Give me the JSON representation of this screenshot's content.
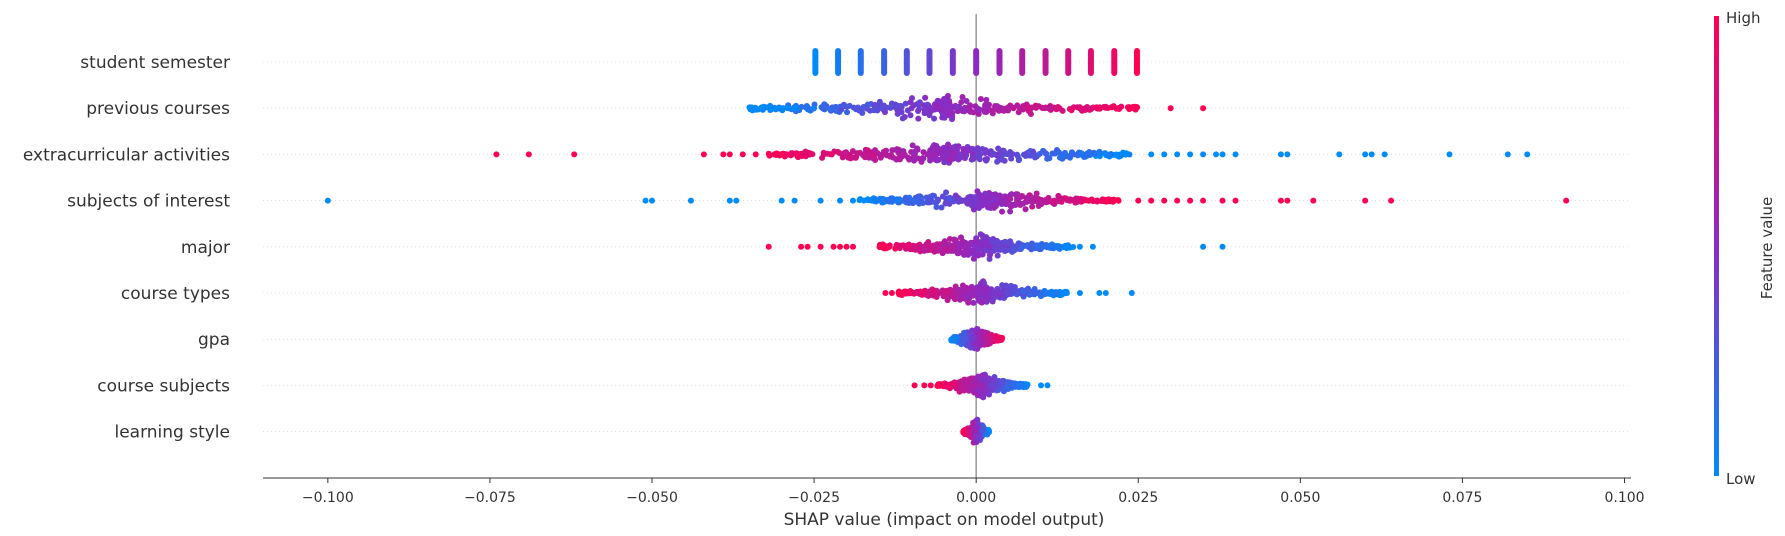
{
  "chart_data": {
    "type": "scatter",
    "subtype": "shap-beeswarm",
    "title": "",
    "xlabel": "SHAP value (impact on model output)",
    "ylabel": "",
    "xlim": [
      -0.11,
      0.101
    ],
    "xticks": [
      -0.1,
      -0.075,
      -0.05,
      -0.025,
      0.0,
      0.025,
      0.05,
      0.075,
      0.1
    ],
    "xtick_labels": [
      "−0.100",
      "−0.075",
      "−0.050",
      "−0.025",
      "0.000",
      "0.025",
      "0.050",
      "0.075",
      "0.100"
    ],
    "grid": false,
    "zero_line": true,
    "colorbar": {
      "label": "Feature value",
      "high_label": "High",
      "low_label": "Low",
      "low_color": "#008bfb",
      "mid_color": "#8b2bc3",
      "high_color": "#ff0052",
      "placement": "right"
    },
    "features": [
      {
        "name": "student semester",
        "kind": "discrete",
        "x_values": [
          -0.0248,
          -0.0213,
          -0.0178,
          -0.0142,
          -0.0107,
          -0.0072,
          -0.0036,
          0.0,
          0.0036,
          0.0071,
          0.0107,
          0.0142,
          0.0177,
          0.0213,
          0.0248
        ],
        "feature_value_rank": [
          0.0,
          0.07,
          0.14,
          0.21,
          0.29,
          0.36,
          0.43,
          0.5,
          0.57,
          0.64,
          0.71,
          0.79,
          0.86,
          0.93,
          1.0
        ]
      },
      {
        "name": "previous courses",
        "kind": "continuous",
        "range": [
          -0.035,
          0.025
        ],
        "trend": "increasing",
        "spread": 0.009,
        "outliers": [
          [
            -0.034,
            0.0
          ],
          [
            -0.033,
            0.0
          ],
          [
            -0.031,
            0.0
          ],
          [
            -0.03,
            0.0
          ],
          [
            -0.029,
            0.0
          ],
          [
            -0.028,
            0.0
          ],
          [
            -0.025,
            0.05
          ],
          [
            0.03,
            1.0
          ],
          [
            0.035,
            1.0
          ]
        ]
      },
      {
        "name": "extracurricular activities",
        "kind": "continuous",
        "range": [
          -0.032,
          0.024
        ],
        "trend": "decreasing",
        "spread": 0.011,
        "outliers": [
          [
            -0.074,
            1.0
          ],
          [
            -0.069,
            1.0
          ],
          [
            -0.062,
            1.0
          ],
          [
            -0.042,
            1.0
          ],
          [
            -0.039,
            1.0
          ],
          [
            -0.038,
            1.0
          ],
          [
            -0.036,
            1.0
          ],
          [
            -0.034,
            1.0
          ],
          [
            0.027,
            0.0
          ],
          [
            0.029,
            0.0
          ],
          [
            0.031,
            0.0
          ],
          [
            0.033,
            0.0
          ],
          [
            0.035,
            0.0
          ],
          [
            0.037,
            0.0
          ],
          [
            0.038,
            0.0
          ],
          [
            0.04,
            0.0
          ],
          [
            0.047,
            0.0
          ],
          [
            0.048,
            0.0
          ],
          [
            0.056,
            0.0
          ],
          [
            0.06,
            0.0
          ],
          [
            0.061,
            0.0
          ],
          [
            0.063,
            0.0
          ],
          [
            0.073,
            0.0
          ],
          [
            0.082,
            0.0
          ],
          [
            0.085,
            0.0
          ]
        ]
      },
      {
        "name": "subjects of interest",
        "kind": "continuous",
        "range": [
          -0.018,
          0.022
        ],
        "trend": "increasing",
        "spread": 0.008,
        "outliers": [
          [
            -0.1,
            0.0
          ],
          [
            -0.051,
            0.0
          ],
          [
            -0.05,
            0.0
          ],
          [
            -0.044,
            0.0
          ],
          [
            -0.038,
            0.0
          ],
          [
            -0.037,
            0.0
          ],
          [
            -0.03,
            0.0
          ],
          [
            -0.028,
            0.0
          ],
          [
            -0.024,
            0.0
          ],
          [
            -0.021,
            0.0
          ],
          [
            -0.019,
            0.0
          ],
          [
            0.025,
            1.0
          ],
          [
            0.027,
            1.0
          ],
          [
            0.029,
            1.0
          ],
          [
            0.031,
            1.0
          ],
          [
            0.033,
            1.0
          ],
          [
            0.035,
            1.0
          ],
          [
            0.038,
            1.0
          ],
          [
            0.04,
            1.0
          ],
          [
            0.047,
            1.0
          ],
          [
            0.048,
            1.0
          ],
          [
            0.052,
            1.0
          ],
          [
            0.06,
            1.0
          ],
          [
            0.064,
            1.0
          ],
          [
            0.091,
            1.0
          ]
        ]
      },
      {
        "name": "major",
        "kind": "continuous",
        "range": [
          -0.015,
          0.015
        ],
        "trend": "decreasing",
        "spread": 0.004,
        "outliers": [
          [
            -0.032,
            1.0
          ],
          [
            -0.027,
            1.0
          ],
          [
            -0.026,
            1.0
          ],
          [
            -0.024,
            1.0
          ],
          [
            -0.022,
            1.0
          ],
          [
            -0.021,
            1.0
          ],
          [
            -0.02,
            1.0
          ],
          [
            -0.019,
            1.0
          ],
          [
            0.016,
            0.0
          ],
          [
            0.018,
            0.0
          ],
          [
            0.035,
            0.0
          ],
          [
            0.038,
            0.0
          ]
        ]
      },
      {
        "name": "course types",
        "kind": "continuous",
        "range": [
          -0.012,
          0.014
        ],
        "trend": "decreasing",
        "spread": 0.004,
        "outliers": [
          [
            -0.014,
            1.0
          ],
          [
            -0.013,
            1.0
          ],
          [
            0.016,
            0.0
          ],
          [
            0.019,
            0.0
          ],
          [
            0.02,
            0.0
          ],
          [
            0.024,
            0.0
          ]
        ]
      },
      {
        "name": "gpa",
        "kind": "continuous",
        "range": [
          -0.004,
          0.004
        ],
        "trend": "increasing",
        "spread": 0.002,
        "outliers": []
      },
      {
        "name": "course subjects",
        "kind": "continuous",
        "range": [
          -0.006,
          0.008
        ],
        "trend": "decreasing",
        "spread": 0.002,
        "outliers": [
          [
            -0.0095,
            1.0
          ],
          [
            -0.008,
            1.0
          ],
          [
            -0.007,
            1.0
          ],
          [
            0.01,
            0.0
          ],
          [
            0.011,
            0.0
          ]
        ]
      },
      {
        "name": "learning style",
        "kind": "continuous",
        "range": [
          -0.002,
          0.002
        ],
        "trend": "decreasing",
        "spread": 0.001,
        "outliers": []
      }
    ]
  }
}
